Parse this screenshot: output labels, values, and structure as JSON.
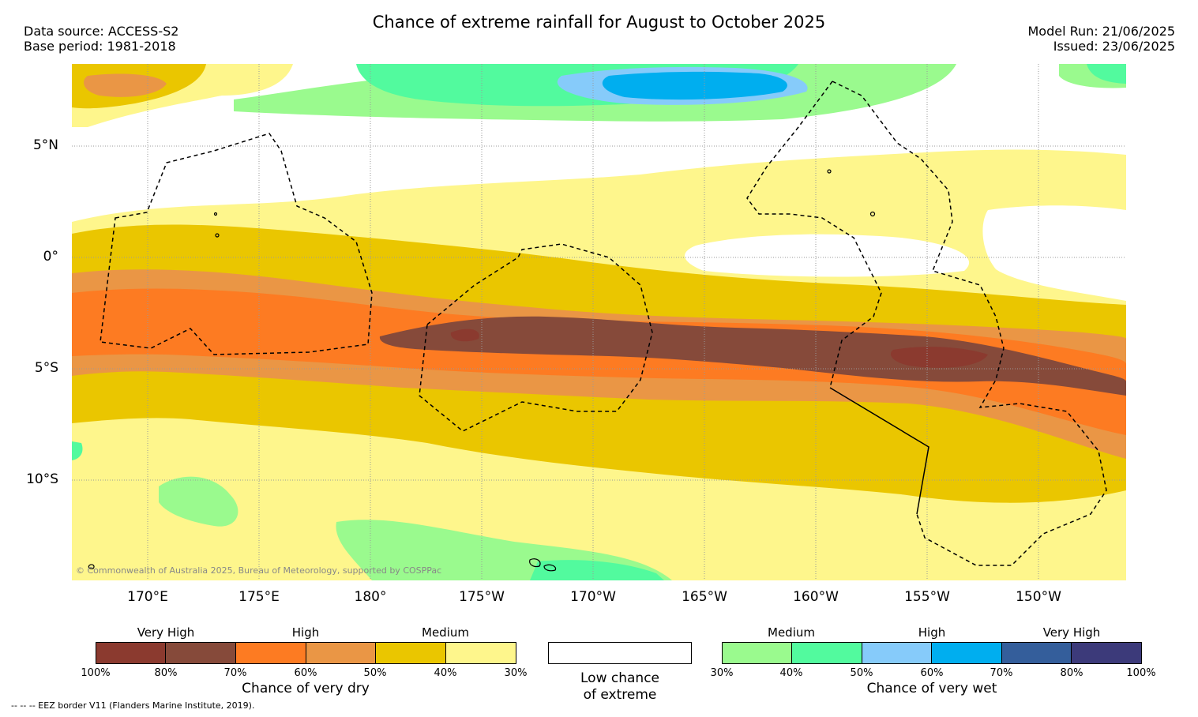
{
  "title": "Chance of extreme rainfall for August to October 2025",
  "data_source": "Data source: ACCESS-S2",
  "base_period": "Base period: 1981-2018",
  "model_run": "Model Run: 21/06/2025",
  "issued": "Issued: 23/06/2025",
  "lat_labels": [
    "5°N",
    "0°",
    "5°S",
    "10°S"
  ],
  "lon_labels": [
    "170°E",
    "175°E",
    "180°",
    "175°W",
    "170°W",
    "165°W",
    "160°W",
    "155°W",
    "150°W"
  ],
  "copyright": "© Commonwealth of Australia 2025, Bureau of Meteorology, supported by COSPPac",
  "legend_dry": {
    "categories": [
      "Very High",
      "High",
      "Medium"
    ],
    "ticks": [
      "100%",
      "80%",
      "70%",
      "60%",
      "50%",
      "40%",
      "30%"
    ],
    "colors": [
      "#8b3a2f",
      "#864a3a",
      "#fd7b22",
      "#ea9645",
      "#eac600",
      "#fef68c"
    ],
    "title": "Chance of very dry"
  },
  "legend_low": {
    "line1": "Low chance",
    "line2": "of extreme",
    "color": "#ffffff"
  },
  "legend_wet": {
    "categories": [
      "Medium",
      "High",
      "Very High"
    ],
    "ticks": [
      "30%",
      "40%",
      "50%",
      "60%",
      "70%",
      "80%",
      "100%"
    ],
    "colors": [
      "#9afa8e",
      "#52fa9e",
      "#86cbfa",
      "#00aeef",
      "#345e9b",
      "#3c3a7a"
    ],
    "title": "Chance of very wet"
  },
  "footnote": "--  --  -- EEZ border V11 (Flanders Marine Institute, 2019)."
}
